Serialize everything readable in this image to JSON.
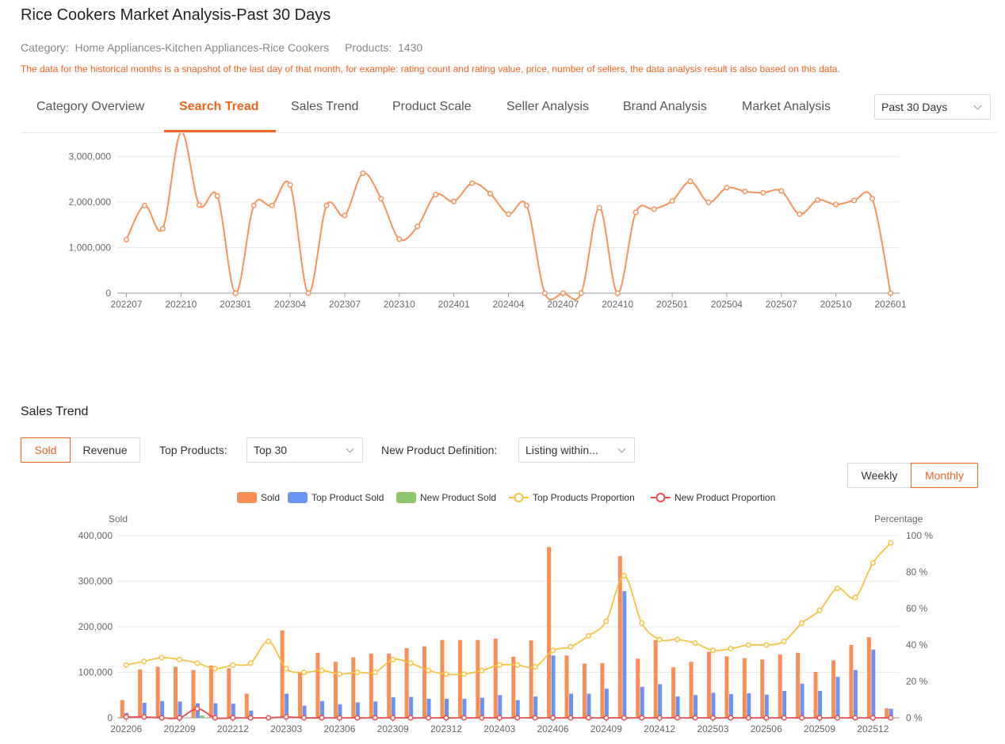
{
  "page": {
    "title": "Rice Cookers Market Analysis-Past 30 Days",
    "category_label": "Category:",
    "category_value": "Home Appliances-Kitchen Appliances-Rice Cookers",
    "products_label": "Products:",
    "products_value": "1430",
    "notice": "The data for the historical months is a snapshot of the last day of that month, for example: rating count and rating value, price, number of sellers, the data analysis result is also based on this data."
  },
  "tabs": [
    {
      "label": "Category Overview"
    },
    {
      "label": "Search Tread"
    },
    {
      "label": "Sales Trend"
    },
    {
      "label": "Product Scale"
    },
    {
      "label": "Seller Analysis"
    },
    {
      "label": "Brand Analysis"
    },
    {
      "label": "Market Analysis"
    }
  ],
  "period_select": {
    "value": "Past 30 Days"
  },
  "sales_section": {
    "title": "Sales Trend",
    "toggle_sold": "Sold",
    "toggle_revenue": "Revenue",
    "top_products_label": "Top Products:",
    "top_products_value": "Top 30",
    "new_def_label": "New Product Definition:",
    "new_def_value": "Listing within...",
    "weekly": "Weekly",
    "monthly": "Monthly"
  },
  "colors": {
    "accent": "#f0641e",
    "sold": "#f98e56",
    "top": "#6994f5",
    "new": "#8cc76b",
    "top_prop": "#f7c242",
    "new_prop": "#ec4e52",
    "search": "#f7925a"
  },
  "chart_data": [
    {
      "type": "line",
      "title": "",
      "ylim": [
        0,
        3000000
      ],
      "y_ticks": [
        "0",
        "1,000,000",
        "2,000,000",
        "3,000,000"
      ],
      "x_tick_labels": [
        "202207",
        "202210",
        "202301",
        "202304",
        "202307",
        "202310",
        "202401",
        "202404",
        "202407",
        "202410",
        "202501",
        "202504",
        "202507",
        "202510",
        "202601"
      ],
      "x": [
        "202207",
        "202208",
        "202209",
        "202210",
        "202211",
        "202212",
        "202301",
        "202302",
        "202303",
        "202304",
        "202305",
        "202306",
        "202307",
        "202308",
        "202309",
        "202310",
        "202311",
        "202312",
        "202401",
        "202402",
        "202403",
        "202404",
        "202405",
        "202406",
        "202407",
        "202408",
        "202409",
        "202410",
        "202411",
        "202412",
        "202501",
        "202502",
        "202503",
        "202504",
        "202505",
        "202506",
        "202507",
        "202508",
        "202509",
        "202510",
        "202511",
        "202512",
        "202601"
      ],
      "values": [
        1180000,
        1930000,
        1420000,
        3550000,
        1940000,
        2140000,
        0,
        1930000,
        1930000,
        2380000,
        0,
        1930000,
        1710000,
        2640000,
        2080000,
        1190000,
        1470000,
        2170000,
        2020000,
        2420000,
        2190000,
        1740000,
        1930000,
        0,
        0,
        0,
        1880000,
        0,
        1780000,
        1850000,
        2030000,
        2460000,
        2000000,
        2320000,
        2240000,
        2210000,
        2250000,
        1740000,
        2050000,
        1950000,
        2040000,
        2080000,
        0
      ]
    },
    {
      "type": "bar",
      "y_left_label": "Sold",
      "y_right_label": "Percentage",
      "ylim": [
        0,
        400000
      ],
      "y_ticks": [
        "0",
        "100,000",
        "200,000",
        "300,000",
        "400,000"
      ],
      "y_right_ticks": [
        "0 %",
        "20 %",
        "40 %",
        "60 %",
        "80 %",
        "100 %"
      ],
      "x_tick_labels": [
        "202206",
        "202209",
        "202212",
        "202303",
        "202306",
        "202309",
        "202312",
        "202403",
        "202406",
        "202409",
        "202412",
        "202503",
        "202506",
        "202509",
        "202512"
      ],
      "legend": [
        "Sold",
        "Top Product Sold",
        "New Product Sold",
        "Top Products Proportion",
        "New Product Proportion"
      ],
      "categories": [
        "202206",
        "202207",
        "202208",
        "202209",
        "202210",
        "202211",
        "202212",
        "202301",
        "202302",
        "202303",
        "202304",
        "202305",
        "202306",
        "202307",
        "202308",
        "202309",
        "202310",
        "202311",
        "202312",
        "202401",
        "202402",
        "202403",
        "202404",
        "202405",
        "202406",
        "202407",
        "202408",
        "202409",
        "202410",
        "202411",
        "202412",
        "202501",
        "202502",
        "202503",
        "202504",
        "202505",
        "202506",
        "202507",
        "202508",
        "202509",
        "202510",
        "202511",
        "202512",
        "202601"
      ],
      "series": [
        {
          "name": "Sold",
          "values": [
            39000,
            106000,
            112000,
            112000,
            105000,
            115000,
            109000,
            53000,
            0,
            192000,
            100000,
            143000,
            123000,
            133000,
            141000,
            141000,
            153000,
            157000,
            171000,
            171000,
            171000,
            174000,
            134000,
            170000,
            375000,
            137000,
            119000,
            120000,
            355000,
            130000,
            171000,
            111000,
            123000,
            145000,
            135000,
            131000,
            128000,
            139000,
            143000,
            101000,
            126000,
            160000,
            177000,
            21000
          ]
        },
        {
          "name": "Top Product Sold",
          "values": [
            11000,
            33000,
            37000,
            36000,
            32000,
            32000,
            31000,
            16000,
            0,
            53000,
            27000,
            37000,
            30000,
            34000,
            36000,
            45000,
            46000,
            42000,
            42000,
            42000,
            44000,
            50000,
            39000,
            47000,
            137000,
            53000,
            53000,
            64000,
            278000,
            68000,
            74000,
            47000,
            50000,
            55000,
            52000,
            54000,
            51000,
            59000,
            75000,
            59000,
            90000,
            105000,
            150000,
            20000
          ]
        },
        {
          "name": "New Product Sold",
          "values": [
            0,
            0,
            0,
            0,
            5000,
            0,
            0,
            0,
            0,
            0,
            0,
            0,
            0,
            0,
            0,
            0,
            0,
            0,
            0,
            0,
            0,
            0,
            0,
            0,
            0,
            0,
            0,
            0,
            0,
            0,
            0,
            0,
            0,
            0,
            0,
            0,
            0,
            0,
            0,
            0,
            0,
            0,
            0,
            0
          ]
        },
        {
          "name": "Top Products Proportion",
          "values": [
            29,
            31,
            33,
            32,
            30,
            27,
            29,
            30,
            42,
            27,
            25,
            26,
            24,
            25,
            25,
            32,
            30,
            26,
            24,
            24,
            26,
            29,
            29,
            28,
            37,
            39,
            45,
            53,
            78,
            52,
            43,
            43,
            41,
            37,
            38,
            40,
            40,
            42,
            52,
            59,
            71,
            66,
            85,
            96
          ]
        },
        {
          "name": "New Product Proportion",
          "values": [
            0.5,
            0.5,
            0,
            0,
            5,
            0,
            0,
            0,
            0,
            0.5,
            0,
            0,
            0,
            0,
            0,
            0,
            0,
            0,
            0,
            0,
            0,
            0,
            0,
            0,
            0,
            0,
            0,
            0,
            0,
            0,
            0,
            0,
            0,
            0,
            0,
            0,
            0,
            0,
            0,
            0,
            0,
            0,
            0,
            0
          ]
        }
      ]
    }
  ]
}
